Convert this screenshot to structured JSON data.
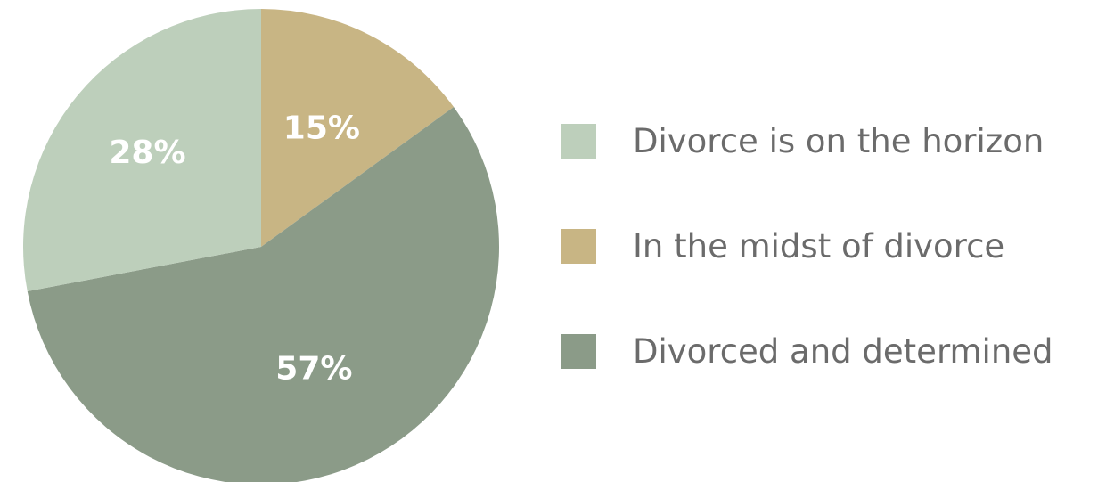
{
  "chart_data": {
    "type": "pie",
    "title": "",
    "slices": [
      {
        "name": "Divorce is on the horizon",
        "value": 28,
        "label": "28%",
        "color": "#bdcfbb"
      },
      {
        "name": "In the midst of divorce",
        "value": 15,
        "label": "15%",
        "color": "#c8b584"
      },
      {
        "name": "Divorced and determined",
        "value": 57,
        "label": "57%",
        "color": "#8b9b88"
      }
    ],
    "legend_position": "right"
  }
}
